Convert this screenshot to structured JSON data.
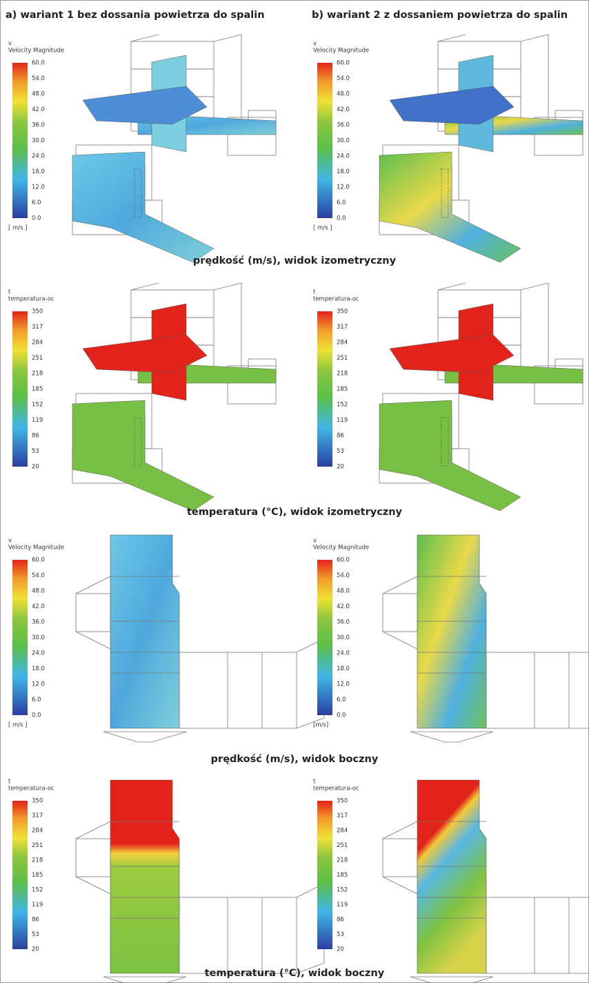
{
  "header": {
    "columns": [
      "a) wariant 1 bez dossania powietrza do spalin",
      "b) wariant 2 z dossaniem powietrza do spalin"
    ]
  },
  "rows": [
    {
      "caption": "prędkość (m/s), widok izometryczny",
      "legends": [
        {
          "symbol": "v",
          "title": "Velocity Magnitude",
          "labels": [
            "60.0",
            "54.0",
            "48.0",
            "42.0",
            "36.0",
            "30.0",
            "24.0",
            "18.0",
            "12.0",
            "6.0",
            "0.0"
          ],
          "unit": "[ m/s ]"
        },
        {
          "symbol": "v",
          "title": "Velocity Magnitude",
          "labels": [
            "60.0",
            "54.0",
            "48.0",
            "42.0",
            "36.0",
            "30.0",
            "24.0",
            "18.0",
            "12.0",
            "6.0",
            "0.0"
          ],
          "unit": "[ m/s ]"
        }
      ]
    },
    {
      "caption": "temperatura (°C), widok izometryczny",
      "legends": [
        {
          "symbol": "t",
          "title": "temperatura-oc",
          "labels": [
            "350",
            "317",
            "284",
            "251",
            "218",
            "185",
            "152",
            "119",
            "86",
            "53",
            "20"
          ]
        },
        {
          "symbol": "t",
          "title": "temperatura-oc",
          "labels": [
            "350",
            "317",
            "284",
            "251",
            "218",
            "185",
            "152",
            "119",
            "86",
            "53",
            "20"
          ]
        }
      ]
    },
    {
      "caption": "prędkość (m/s), widok boczny",
      "legends": [
        {
          "symbol": "v",
          "title": "Velocity Magnitude",
          "labels": [
            "60.0",
            "54.0",
            "48.0",
            "42.0",
            "36.0",
            "30.0",
            "24.0",
            "18.0",
            "12.0",
            "6.0",
            "0.0"
          ],
          "unit": "[ m/s ]"
        },
        {
          "symbol": "v",
          "title": "Velocity Magnitude",
          "labels": [
            "60.0",
            "54.0",
            "48.0",
            "42.0",
            "36.0",
            "30.0",
            "24.0",
            "18.0",
            "12.0",
            "6.0",
            "0.0"
          ],
          "unit": "[m/s]"
        }
      ]
    },
    {
      "caption": "temperatura (°C), widok boczny",
      "legends": [
        {
          "symbol": "t",
          "title": "temperatura-oc",
          "labels": [
            "350",
            "317",
            "284",
            "251",
            "218",
            "185",
            "152",
            "119",
            "86",
            "53",
            "20"
          ]
        },
        {
          "symbol": "t",
          "title": "temperatura-oc",
          "labels": [
            "350",
            "317",
            "284",
            "251",
            "218",
            "185",
            "152",
            "119",
            "86",
            "53",
            "20"
          ]
        }
      ]
    }
  ]
}
